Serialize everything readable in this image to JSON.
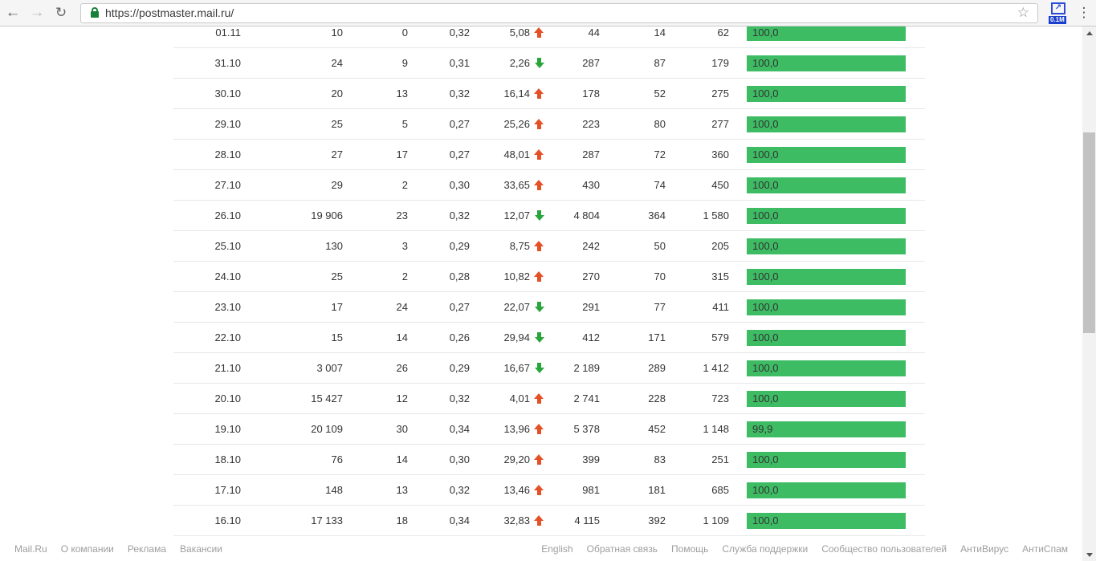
{
  "browser": {
    "url": "https://postmaster.mail.ru/",
    "extension_badge": "0.1M"
  },
  "icons": {
    "back": "←",
    "forward": "→",
    "reload": "↻",
    "star": "☆",
    "menu": "⋮",
    "ext_arrow": "↗"
  },
  "colors": {
    "bar": "#3dbc64",
    "up": "#e45127",
    "down": "#2aa53c",
    "lock": "#188038"
  },
  "table": {
    "rows": [
      {
        "date": "01.11",
        "cols": [
          "10",
          "0",
          "0,32"
        ],
        "trend_value": "5,08",
        "trend_dir": "up",
        "cols2": [
          "44",
          "14",
          "62"
        ],
        "bar_label": "100,0",
        "bar_pct": 100
      },
      {
        "date": "31.10",
        "cols": [
          "24",
          "9",
          "0,31"
        ],
        "trend_value": "2,26",
        "trend_dir": "down",
        "cols2": [
          "287",
          "87",
          "179"
        ],
        "bar_label": "100,0",
        "bar_pct": 100
      },
      {
        "date": "30.10",
        "cols": [
          "20",
          "13",
          "0,32"
        ],
        "trend_value": "16,14",
        "trend_dir": "up",
        "cols2": [
          "178",
          "52",
          "275"
        ],
        "bar_label": "100,0",
        "bar_pct": 100
      },
      {
        "date": "29.10",
        "cols": [
          "25",
          "5",
          "0,27"
        ],
        "trend_value": "25,26",
        "trend_dir": "up",
        "cols2": [
          "223",
          "80",
          "277"
        ],
        "bar_label": "100,0",
        "bar_pct": 100
      },
      {
        "date": "28.10",
        "cols": [
          "27",
          "17",
          "0,27"
        ],
        "trend_value": "48,01",
        "trend_dir": "up",
        "cols2": [
          "287",
          "72",
          "360"
        ],
        "bar_label": "100,0",
        "bar_pct": 100
      },
      {
        "date": "27.10",
        "cols": [
          "29",
          "2",
          "0,30"
        ],
        "trend_value": "33,65",
        "trend_dir": "up",
        "cols2": [
          "430",
          "74",
          "450"
        ],
        "bar_label": "100,0",
        "bar_pct": 100
      },
      {
        "date": "26.10",
        "cols": [
          "19 906",
          "23",
          "0,32"
        ],
        "trend_value": "12,07",
        "trend_dir": "down",
        "cols2": [
          "4 804",
          "364",
          "1 580"
        ],
        "bar_label": "100,0",
        "bar_pct": 100
      },
      {
        "date": "25.10",
        "cols": [
          "130",
          "3",
          "0,29"
        ],
        "trend_value": "8,75",
        "trend_dir": "up",
        "cols2": [
          "242",
          "50",
          "205"
        ],
        "bar_label": "100,0",
        "bar_pct": 100
      },
      {
        "date": "24.10",
        "cols": [
          "25",
          "2",
          "0,28"
        ],
        "trend_value": "10,82",
        "trend_dir": "up",
        "cols2": [
          "270",
          "70",
          "315"
        ],
        "bar_label": "100,0",
        "bar_pct": 100
      },
      {
        "date": "23.10",
        "cols": [
          "17",
          "24",
          "0,27"
        ],
        "trend_value": "22,07",
        "trend_dir": "down",
        "cols2": [
          "291",
          "77",
          "411"
        ],
        "bar_label": "100,0",
        "bar_pct": 100
      },
      {
        "date": "22.10",
        "cols": [
          "15",
          "14",
          "0,26"
        ],
        "trend_value": "29,94",
        "trend_dir": "down",
        "cols2": [
          "412",
          "171",
          "579"
        ],
        "bar_label": "100,0",
        "bar_pct": 100
      },
      {
        "date": "21.10",
        "cols": [
          "3 007",
          "26",
          "0,29"
        ],
        "trend_value": "16,67",
        "trend_dir": "down",
        "cols2": [
          "2 189",
          "289",
          "1 412"
        ],
        "bar_label": "100,0",
        "bar_pct": 100
      },
      {
        "date": "20.10",
        "cols": [
          "15 427",
          "12",
          "0,32"
        ],
        "trend_value": "4,01",
        "trend_dir": "up",
        "cols2": [
          "2 741",
          "228",
          "723"
        ],
        "bar_label": "100,0",
        "bar_pct": 100
      },
      {
        "date": "19.10",
        "cols": [
          "20 109",
          "30",
          "0,34"
        ],
        "trend_value": "13,96",
        "trend_dir": "up",
        "cols2": [
          "5 378",
          "452",
          "1 148"
        ],
        "bar_label": "99,9",
        "bar_pct": 99.9
      },
      {
        "date": "18.10",
        "cols": [
          "76",
          "14",
          "0,30"
        ],
        "trend_value": "29,20",
        "trend_dir": "up",
        "cols2": [
          "399",
          "83",
          "251"
        ],
        "bar_label": "100,0",
        "bar_pct": 100
      },
      {
        "date": "17.10",
        "cols": [
          "148",
          "13",
          "0,32"
        ],
        "trend_value": "13,46",
        "trend_dir": "up",
        "cols2": [
          "981",
          "181",
          "685"
        ],
        "bar_label": "100,0",
        "bar_pct": 100
      },
      {
        "date": "16.10",
        "cols": [
          "17 133",
          "18",
          "0,34"
        ],
        "trend_value": "32,83",
        "trend_dir": "up",
        "cols2": [
          "4 115",
          "392",
          "1 109"
        ],
        "bar_label": "100,0",
        "bar_pct": 100
      }
    ]
  },
  "footer": {
    "left_links": [
      "Mail.Ru",
      "О компании",
      "Реклама",
      "Вакансии"
    ],
    "right_links": [
      "English",
      "Обратная связь",
      "Помощь",
      "Служба поддержки",
      "Сообщество пользователей",
      "АнтиВирус",
      "АнтиСпам"
    ]
  }
}
